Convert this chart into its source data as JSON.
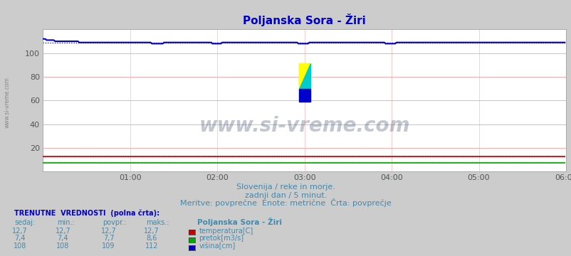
{
  "title": "Poljanska Sora - Žiri",
  "title_color": "#0000cc",
  "bg_color": "#cccccc",
  "plot_bg_color": "#ffffff",
  "watermark": "www.si-vreme.com",
  "subtitle1": "Slovenija / reke in morje.",
  "subtitle2": "zadnji dan / 5 minut.",
  "subtitle3": "Meritve: povprečne  Enote: metrične  Črta: povprečje",
  "subtitle_color": "#4488aa",
  "xticks": [
    "01:00",
    "02:00",
    "03:00",
    "04:00",
    "05:00",
    "06:00"
  ],
  "n_points": 432,
  "ylim": [
    0,
    120
  ],
  "yticks": [
    20,
    40,
    60,
    80,
    100
  ],
  "grid_color_h": "#ffaaaa",
  "grid_color_v": "#ffcccc",
  "temperatura_color": "#cc0000",
  "pretok_color": "#00aa00",
  "visina_color": "#0000cc",
  "temperatura_value": "12,7",
  "temperatura_min": "12,7",
  "temperatura_avg": "12,7",
  "temperatura_max": "12,7",
  "pretok_value": "7,4",
  "pretok_min": "7,4",
  "pretok_avg": "7,7",
  "pretok_max": "8,6",
  "visina_value": "108",
  "visina_min": "108",
  "visina_avg": "109",
  "visina_max": "112",
  "table_header_color": "#0000cc",
  "table_label_color": "#4488aa",
  "table_value_color": "#4488aa",
  "left_label": "www.si-vreme.com"
}
